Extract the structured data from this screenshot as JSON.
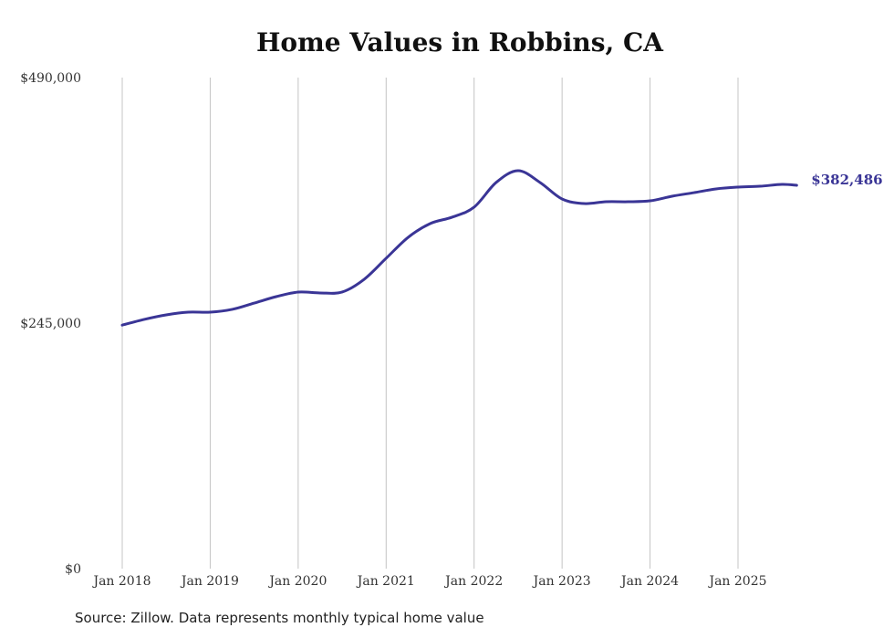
{
  "chart_data": {
    "type": "line",
    "title": "Home Values in Robbins, CA",
    "xlabel": "",
    "ylabel": "",
    "ylim": [
      0,
      490000
    ],
    "yticks": [
      {
        "value": 0,
        "label": "$0"
      },
      {
        "value": 245000,
        "label": "$245,000"
      },
      {
        "value": 490000,
        "label": "$490,000"
      }
    ],
    "xticks": [
      {
        "month": 0,
        "label": "Jan 2018"
      },
      {
        "month": 12,
        "label": "Jan 2019"
      },
      {
        "month": 24,
        "label": "Jan 2020"
      },
      {
        "month": 36,
        "label": "Jan 2021"
      },
      {
        "month": 48,
        "label": "Jan 2022"
      },
      {
        "month": 60,
        "label": "Jan 2023"
      },
      {
        "month": 72,
        "label": "Jan 2024"
      },
      {
        "month": 84,
        "label": "Jan 2025"
      }
    ],
    "grid": "vertical",
    "color": "#3a3596",
    "series": [
      {
        "name": "Typical home value",
        "x_months_since_jan2018": [
          0,
          3,
          6,
          9,
          12,
          15,
          18,
          21,
          24,
          27,
          30,
          33,
          36,
          39,
          42,
          45,
          48,
          51,
          54,
          57,
          60,
          63,
          66,
          69,
          72,
          75,
          78,
          81,
          84,
          87,
          90,
          92
        ],
        "values": [
          243000,
          248700,
          253200,
          255900,
          255900,
          258700,
          265000,
          271400,
          276000,
          275100,
          276000,
          288700,
          309700,
          330600,
          344300,
          350700,
          360700,
          385300,
          397100,
          385300,
          368900,
          364300,
          366100,
          366100,
          367000,
          371600,
          375200,
          378900,
          380700,
          381600,
          383400,
          382486
        ]
      }
    ],
    "end_label": "$382,486"
  },
  "source": "Source: Zillow. Data represents monthly typical home value"
}
